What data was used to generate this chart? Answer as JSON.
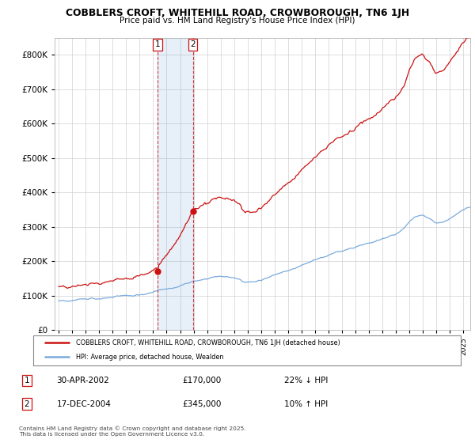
{
  "title": "COBBLERS CROFT, WHITEHILL ROAD, CROWBOROUGH, TN6 1JH",
  "subtitle": "Price paid vs. HM Land Registry's House Price Index (HPI)",
  "legend_line1": "COBBLERS CROFT, WHITEHILL ROAD, CROWBOROUGH, TN6 1JH (detached house)",
  "legend_line2": "HPI: Average price, detached house, Wealden",
  "footer": "Contains HM Land Registry data © Crown copyright and database right 2025.\nThis data is licensed under the Open Government Licence v3.0.",
  "sale1_label": "1",
  "sale1_date": "30-APR-2002",
  "sale1_price": "£170,000",
  "sale1_hpi": "22% ↓ HPI",
  "sale2_label": "2",
  "sale2_date": "17-DEC-2004",
  "sale2_price": "£345,000",
  "sale2_hpi": "10% ↑ HPI",
  "hpi_color": "#7aaadd",
  "price_color": "#cc1111",
  "sale1_x": 2002.33,
  "sale1_y": 170000,
  "sale2_x": 2004.96,
  "sale2_y": 345000,
  "shade_x1": 2002.33,
  "shade_x2": 2004.96,
  "ylim": [
    0,
    850000
  ],
  "yticks": [
    0,
    100000,
    200000,
    300000,
    400000,
    500000,
    600000,
    700000,
    800000
  ],
  "xlim_start": 1994.7,
  "xlim_end": 2025.5,
  "xticks": [
    1995,
    1996,
    1997,
    1998,
    1999,
    2000,
    2001,
    2002,
    2003,
    2004,
    2005,
    2006,
    2007,
    2008,
    2009,
    2010,
    2011,
    2012,
    2013,
    2014,
    2015,
    2016,
    2017,
    2018,
    2019,
    2020,
    2021,
    2022,
    2023,
    2024,
    2025
  ]
}
